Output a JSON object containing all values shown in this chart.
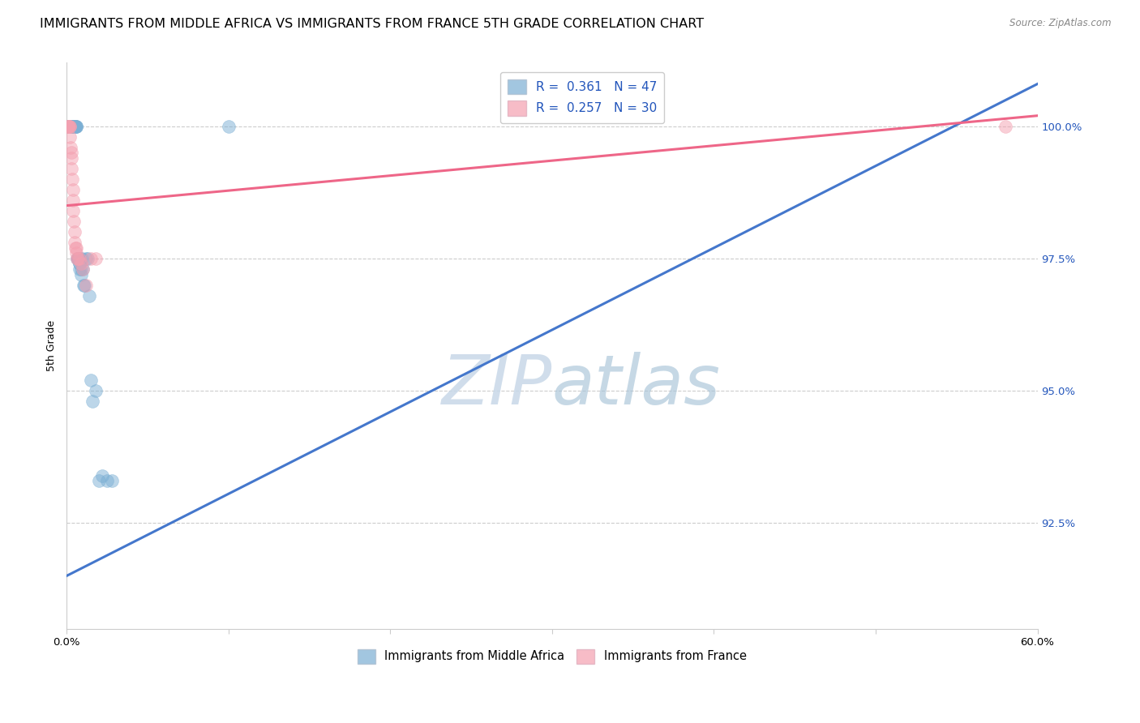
{
  "title": "IMMIGRANTS FROM MIDDLE AFRICA VS IMMIGRANTS FROM FRANCE 5TH GRADE CORRELATION CHART",
  "source": "Source: ZipAtlas.com",
  "ylabel": "5th Grade",
  "ytick_values": [
    92.5,
    95.0,
    97.5,
    100.0
  ],
  "xlim": [
    0.0,
    60.0
  ],
  "ylim": [
    90.5,
    101.2
  ],
  "legend1_label": "R =  0.361   N = 47",
  "legend2_label": "R =  0.257   N = 30",
  "watermark_zip": "ZIP",
  "watermark_atlas": "atlas",
  "blue_color": "#7BAFD4",
  "pink_color": "#F4A0B0",
  "blue_line_color": "#4477CC",
  "pink_line_color": "#EE6688",
  "blue_scatter_x": [
    0.1,
    0.15,
    0.18,
    0.2,
    0.22,
    0.25,
    0.28,
    0.3,
    0.32,
    0.35,
    0.38,
    0.4,
    0.42,
    0.45,
    0.48,
    0.5,
    0.52,
    0.55,
    0.58,
    0.6,
    0.62,
    0.65,
    0.68,
    0.7,
    0.72,
    0.75,
    0.78,
    0.8,
    0.82,
    0.85,
    0.88,
    0.9,
    0.95,
    1.0,
    1.05,
    1.1,
    1.2,
    1.3,
    1.4,
    1.5,
    1.6,
    1.8,
    2.0,
    2.2,
    2.5,
    2.8,
    10.0
  ],
  "blue_scatter_y": [
    100.0,
    100.0,
    100.0,
    100.0,
    100.0,
    100.0,
    100.0,
    100.0,
    100.0,
    100.0,
    100.0,
    100.0,
    100.0,
    100.0,
    100.0,
    100.0,
    100.0,
    100.0,
    100.0,
    100.0,
    100.0,
    97.5,
    97.5,
    97.5,
    97.5,
    97.5,
    97.4,
    97.3,
    97.4,
    97.5,
    97.3,
    97.2,
    97.5,
    97.3,
    97.0,
    97.0,
    97.5,
    97.5,
    96.8,
    95.2,
    94.8,
    95.0,
    93.3,
    93.4,
    93.3,
    93.3,
    100.0
  ],
  "pink_scatter_x": [
    0.08,
    0.1,
    0.12,
    0.15,
    0.18,
    0.2,
    0.22,
    0.25,
    0.28,
    0.3,
    0.32,
    0.35,
    0.38,
    0.4,
    0.42,
    0.45,
    0.48,
    0.5,
    0.55,
    0.6,
    0.65,
    0.7,
    0.8,
    0.9,
    1.0,
    1.2,
    1.5,
    1.8,
    0.6,
    58.0
  ],
  "pink_scatter_y": [
    100.0,
    100.0,
    100.0,
    100.0,
    100.0,
    100.0,
    99.8,
    99.6,
    99.5,
    99.4,
    99.2,
    99.0,
    98.8,
    98.6,
    98.4,
    98.2,
    98.0,
    97.8,
    97.7,
    97.6,
    97.5,
    97.5,
    97.5,
    97.4,
    97.3,
    97.0,
    97.5,
    97.5,
    97.7,
    100.0
  ],
  "blue_line_x0": 0.0,
  "blue_line_x1": 60.0,
  "blue_line_y0": 91.5,
  "blue_line_y1": 100.8,
  "pink_line_x0": 0.0,
  "pink_line_x1": 60.0,
  "pink_line_y0": 98.5,
  "pink_line_y1": 100.2,
  "legend_bottom_blue": "Immigrants from Middle Africa",
  "legend_bottom_pink": "Immigrants from France",
  "title_fontsize": 11.5,
  "axis_label_fontsize": 9,
  "legend_fontsize": 11,
  "tick_fontsize": 9.5
}
